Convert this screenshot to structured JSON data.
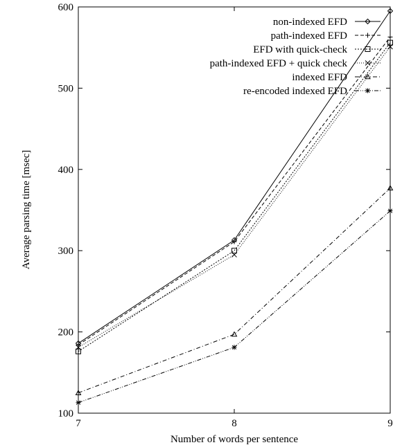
{
  "chart_data": {
    "type": "line",
    "title": "",
    "xlabel": "Number of words per sentence",
    "ylabel": "Average parsing time [msec]",
    "x": [
      7,
      8,
      9
    ],
    "xlim": [
      7,
      9
    ],
    "ylim": [
      100,
      600
    ],
    "xticks": [
      "7",
      "8",
      "9"
    ],
    "yticks": [
      "100",
      "200",
      "300",
      "400",
      "500",
      "600"
    ],
    "grid": false,
    "legend_position": "top-right",
    "series": [
      {
        "name": "non-indexed EFD",
        "values": [
          186,
          313,
          595
        ],
        "marker": "diamond",
        "dash": "solid"
      },
      {
        "name": "path-indexed EFD",
        "values": [
          184,
          311,
          563
        ],
        "marker": "plus",
        "dash": "dashed"
      },
      {
        "name": "EFD with quick-check",
        "values": [
          176,
          300,
          556
        ],
        "marker": "square",
        "dash": "dotted"
      },
      {
        "name": "path-indexed EFD + quick check",
        "values": [
          181,
          295,
          551
        ],
        "marker": "cross",
        "dash": "dotted-fine"
      },
      {
        "name": "indexed EFD",
        "values": [
          125,
          197,
          377
        ],
        "marker": "triangle",
        "dash": "dash-dot"
      },
      {
        "name": "re-encoded indexed EFD",
        "values": [
          113,
          181,
          349
        ],
        "marker": "star",
        "dash": "dash-dot-dot"
      }
    ]
  }
}
